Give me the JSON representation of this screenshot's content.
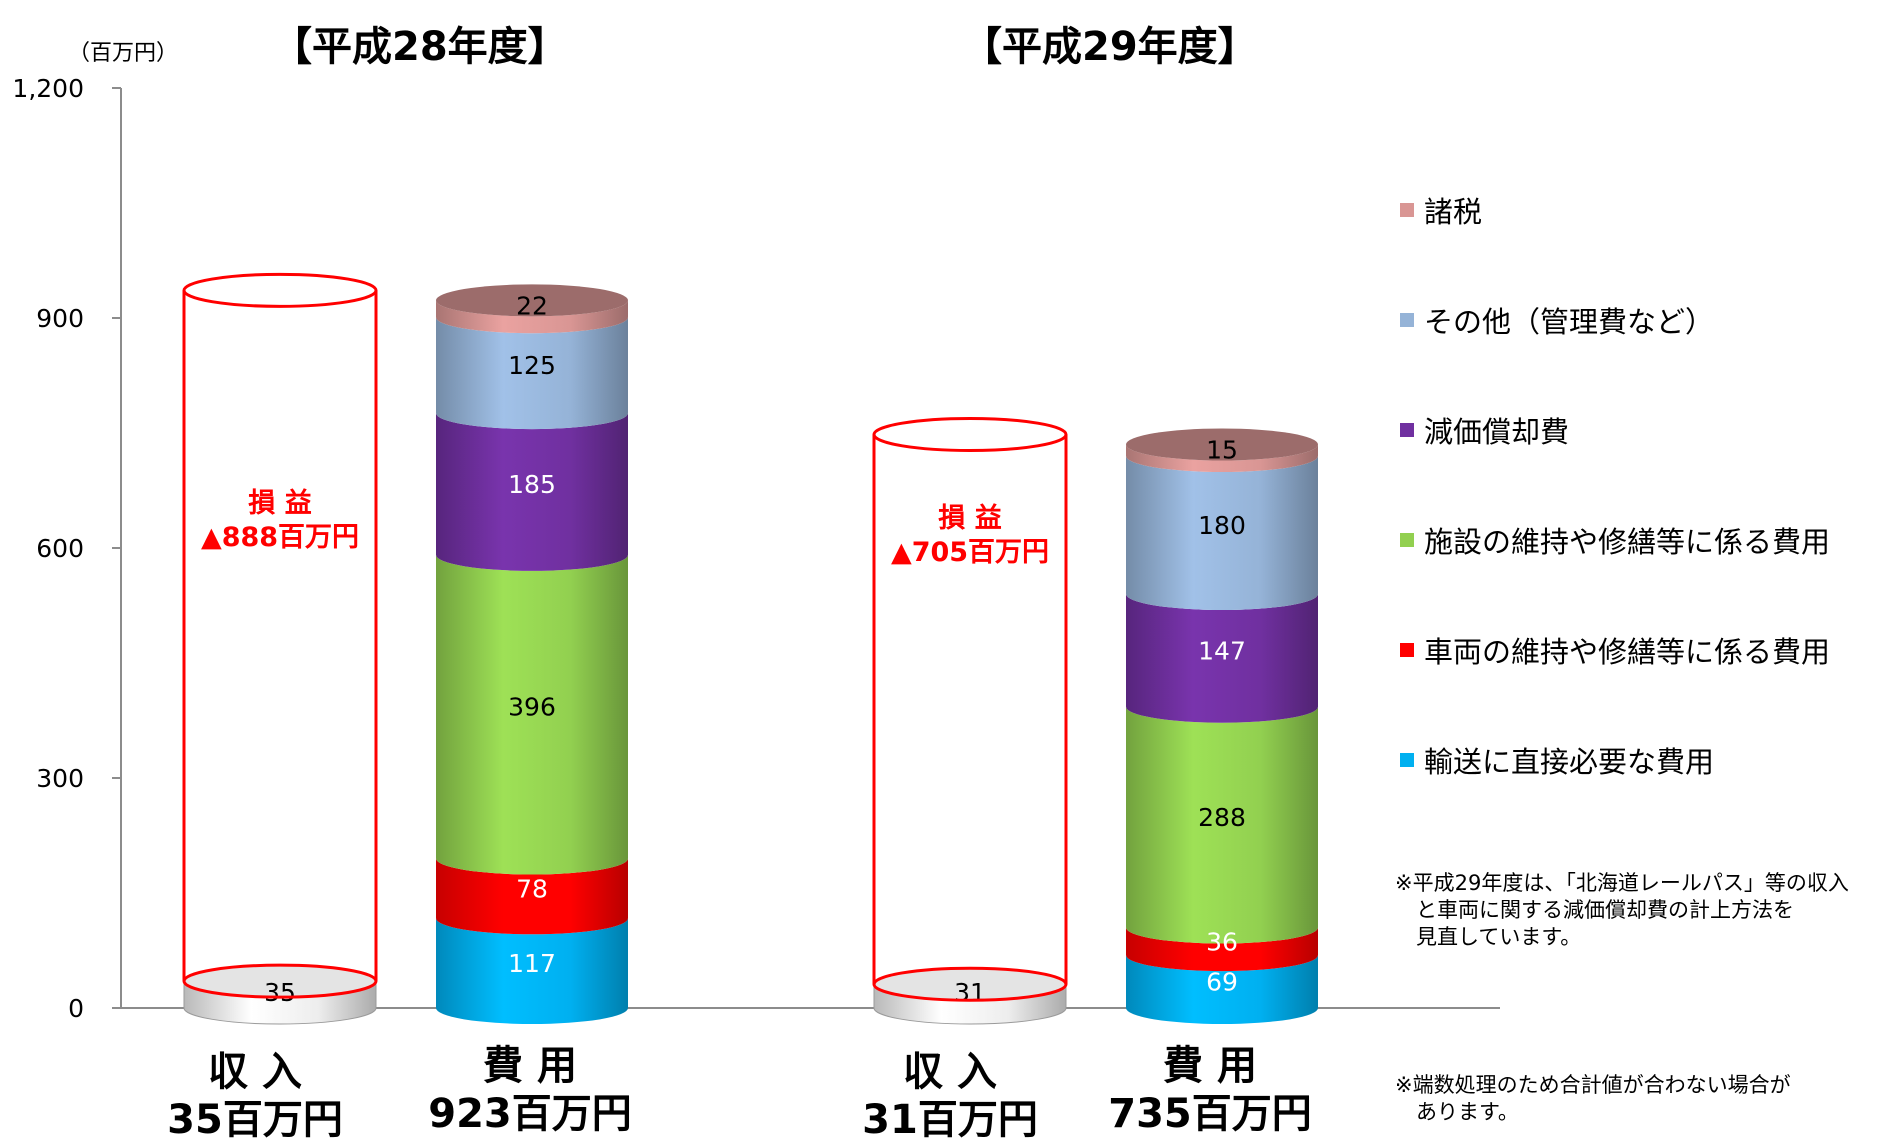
{
  "chart_data": {
    "type": "bar",
    "stacked": true,
    "unit_label": "（百万円）",
    "y_ticks": [
      "0",
      "300",
      "600",
      "900",
      "1,200"
    ],
    "ylim": [
      0,
      1200
    ],
    "grid": false,
    "legend_placement": "right",
    "series": [
      {
        "name": "輸送に直接必要な費用",
        "color": "#00b0f0"
      },
      {
        "name": "車両の維持や修繕等に係る費用",
        "color": "#ff0000"
      },
      {
        "name": "施設の維持や修繕等に係る費用",
        "color": "#92d050"
      },
      {
        "name": "減価償却費",
        "color": "#7030a0"
      },
      {
        "name": "その他（管理費など）",
        "color": "#95b3d7"
      },
      {
        "name": "諸税",
        "color": "#d99694"
      }
    ],
    "panels": [
      {
        "title": "【平成28年度】",
        "revenue": 35,
        "expenses": [
          117,
          78,
          396,
          185,
          125,
          22
        ],
        "loss_label": "損 益",
        "loss_value": "▲888百万円",
        "revenue_label": "収 入",
        "revenue_total": "35百万円",
        "expense_label": "費 用",
        "expense_total": "923百万円"
      },
      {
        "title": "【平成29年度】",
        "revenue": 31,
        "expenses": [
          69,
          36,
          288,
          147,
          180,
          15
        ],
        "loss_label": "損 益",
        "loss_value": "▲705百万円",
        "revenue_label": "収 入",
        "revenue_total": "31百万円",
        "expense_label": "費 用",
        "expense_total": "735百万円"
      }
    ]
  },
  "notes": {
    "method": "※平成29年度は、「北海道レールパス」等の収入\n　と車両に関する減価償却費の計上方法を\n　見直しています。",
    "rounding": "※端数処理のため合計値が合わない場合が\n　あります。"
  }
}
